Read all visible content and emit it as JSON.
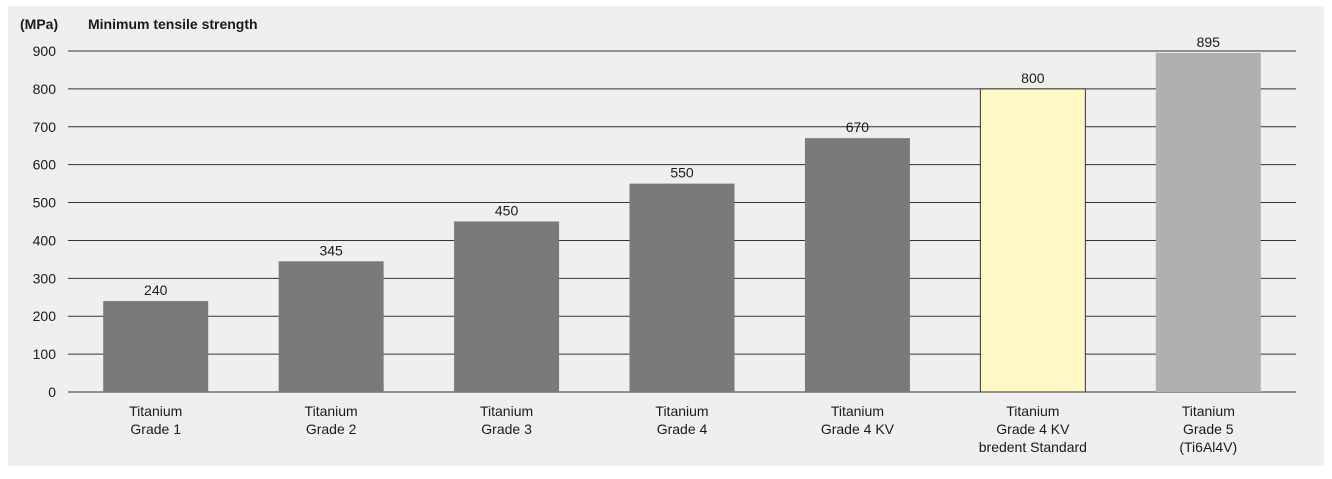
{
  "chart_data": {
    "type": "bar",
    "title": "Minimum tensile strength",
    "ylabel": "(MPa)",
    "xlabel": "",
    "ylim": [
      0,
      900
    ],
    "yticks": [
      0,
      100,
      200,
      300,
      400,
      500,
      600,
      700,
      800,
      900
    ],
    "grid": true,
    "categories": [
      [
        "Titanium",
        "Grade 1"
      ],
      [
        "Titanium",
        "Grade 2"
      ],
      [
        "Titanium",
        "Grade 3"
      ],
      [
        "Titanium",
        "Grade 4"
      ],
      [
        "Titanium",
        "Grade 4 KV"
      ],
      [
        "Titanium",
        "Grade 4 KV",
        "bredent Standard"
      ],
      [
        "Titanium",
        "Grade 5",
        "(Ti6Al4V)"
      ]
    ],
    "values": [
      240,
      345,
      450,
      550,
      670,
      800,
      895
    ],
    "value_labels": [
      "240",
      "345",
      "450",
      "550",
      "670",
      "800",
      "895"
    ],
    "bar_colors": [
      "#7a7a7a",
      "#7a7a7a",
      "#7a7a7a",
      "#7a7a7a",
      "#7a7a7a",
      "#fff7c6",
      "#b0b0b0"
    ],
    "bar_outline_colors": [
      "none",
      "none",
      "none",
      "none",
      "none",
      "#333333",
      "none"
    ],
    "grid_color": "#333333",
    "background_color": "#efefef"
  }
}
